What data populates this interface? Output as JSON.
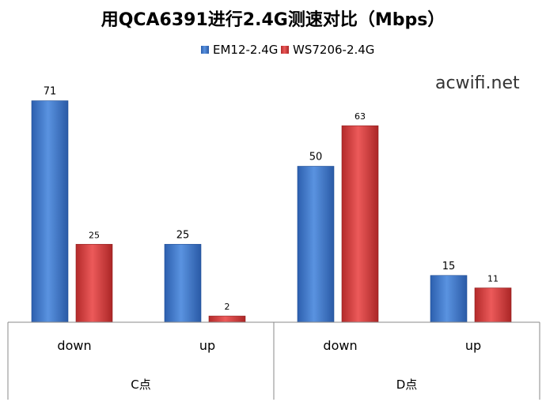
{
  "chart_data": {
    "type": "bar",
    "title": "用QCA6391进行2.4G测速对比（Mbps）",
    "groups": [
      {
        "label": "C点",
        "categories": [
          "down",
          "up"
        ]
      },
      {
        "label": "D点",
        "categories": [
          "down",
          "up"
        ]
      }
    ],
    "series": [
      {
        "name": "EM12-2.4G",
        "values": [
          71,
          25,
          50,
          15
        ],
        "color": "#3b73c6"
      },
      {
        "name": "WS7206-2.4G",
        "values": [
          25,
          2,
          63,
          11
        ],
        "color": "#d23a3a"
      }
    ],
    "ylim": [
      0,
      80
    ],
    "legend": "top-center",
    "grid": false
  },
  "watermark": "acwifi.net"
}
